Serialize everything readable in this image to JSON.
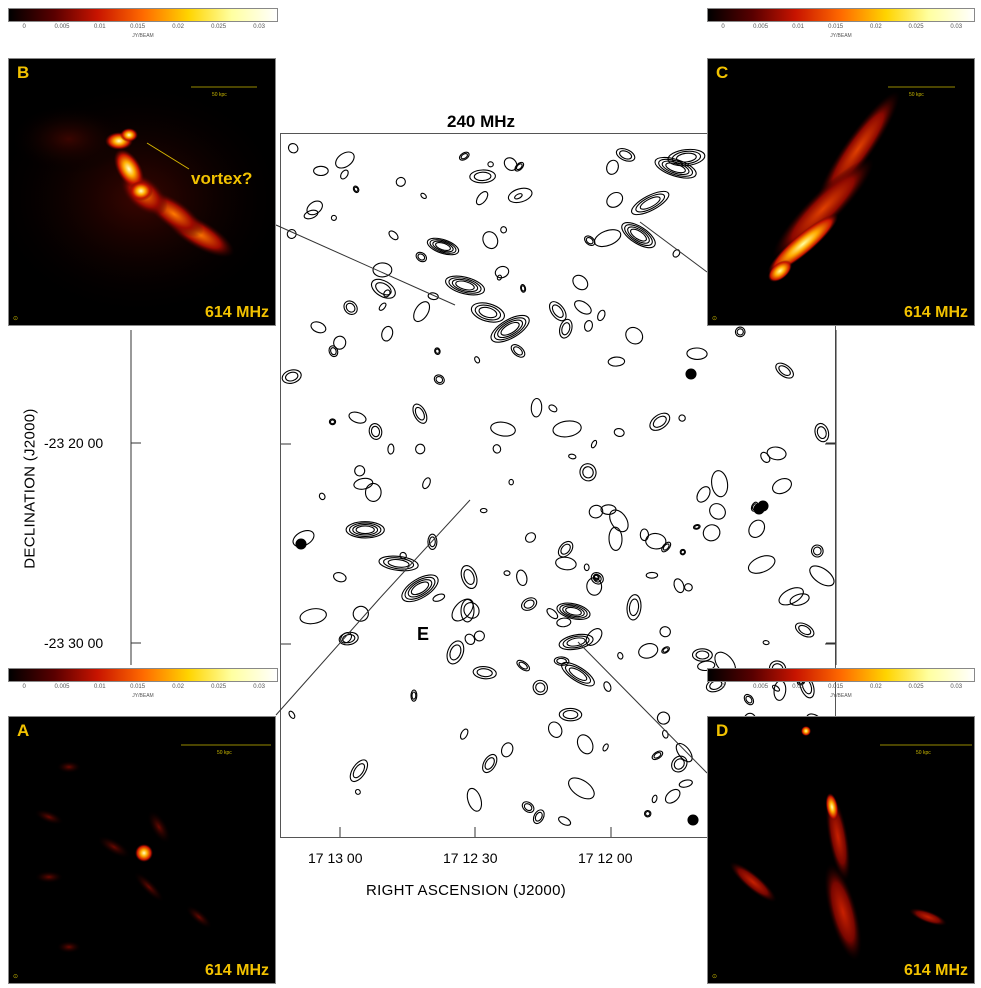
{
  "main_map": {
    "title": "240 MHz",
    "xlabel": "RIGHT ASCENSION  (J2000)",
    "ylabel": "DECLINATION  (J2000)",
    "x_ticks": [
      "17 13 00",
      "17 12 30",
      "17 12 00"
    ],
    "y_ticks": [
      "-23 20 00",
      "-23 30 00"
    ],
    "source_label": "E"
  },
  "panels": {
    "A": {
      "letter": "A",
      "freq": "614 MHz",
      "scale": "50 kpc",
      "corner": "⊙"
    },
    "B": {
      "letter": "B",
      "freq": "614 MHz",
      "scale": "50 kpc",
      "corner": "⊙",
      "annotation": "vortex?"
    },
    "C": {
      "letter": "C",
      "freq": "614 MHz",
      "scale": "50 kpc",
      "corner": "⊙"
    },
    "D": {
      "letter": "D",
      "freq": "614 MHz",
      "scale": "50 kpc",
      "corner": "⊙"
    }
  },
  "colorbars": {
    "B": {
      "ticks": [
        "0",
        "0.005",
        "0.01",
        "0.015",
        "0.02",
        "0.025",
        "0.03"
      ],
      "unit": "JY/BEAM"
    },
    "C": {
      "ticks": [
        "0",
        "0.005",
        "0.01",
        "0.015",
        "0.02",
        "0.025",
        "0.03"
      ],
      "unit": "JY/BEAM"
    },
    "A": {
      "ticks": [
        "0",
        "0.005",
        "0.01",
        "0.015",
        "0.02",
        "0.025",
        "0.03"
      ],
      "unit": "JY/BEAM"
    },
    "D": {
      "ticks": [
        "0",
        "0.005",
        "0.01",
        "0.015",
        "0.02",
        "0.025",
        "0.03"
      ],
      "unit": "JY/BEAM"
    }
  },
  "colors": {
    "colormap": [
      "#000000",
      "#5a0000",
      "#c81400",
      "#ff6a00",
      "#ffd400",
      "#ffffa0",
      "#ffffff"
    ],
    "label_accent": "#f2c200"
  }
}
